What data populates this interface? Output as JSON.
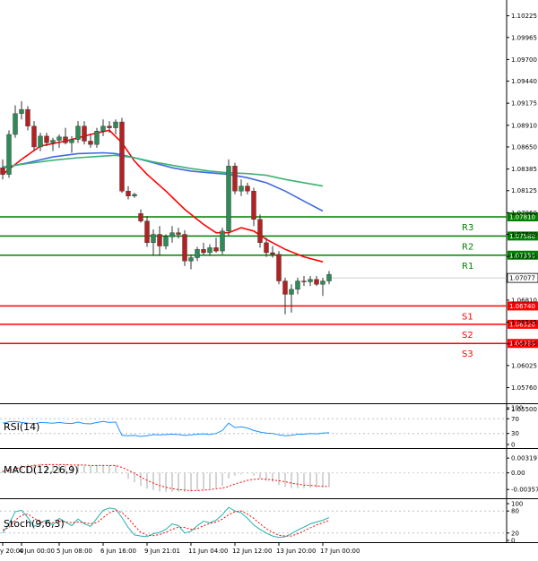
{
  "chart_data": {
    "type": "candlestick",
    "price_axis": {
      "min": 1.0555,
      "max": 1.1035,
      "ticks": [
        "1.10225",
        "1.09965",
        "1.09700",
        "1.09440",
        "1.09175",
        "1.08910",
        "1.08650",
        "1.08385",
        "1.08125",
        "1.07860",
        "1.07600",
        "1.07335",
        "1.06810",
        "1.06545",
        "1.06285",
        "1.06025",
        "1.05760",
        "1.05500"
      ]
    },
    "time_labels": [
      {
        "i": 0,
        "label": "y 20:00"
      },
      {
        "i": 3,
        "label": "4 Jun 00:00"
      },
      {
        "i": 9,
        "label": "5 Jun 08:00"
      },
      {
        "i": 16,
        "label": "6 Jun 16:00"
      },
      {
        "i": 23,
        "label": "9 Jun 21:01"
      },
      {
        "i": 30,
        "label": "11 Jun 04:00"
      },
      {
        "i": 37,
        "label": "12 Jun 12:00"
      },
      {
        "i": 44,
        "label": "13 Jun 20:00"
      },
      {
        "i": 51,
        "label": "17 Jun 00:00"
      }
    ],
    "candles": [
      {
        "o": 1.084,
        "h": 1.085,
        "l": 1.0826,
        "c": 1.0832
      },
      {
        "o": 1.0832,
        "h": 1.0885,
        "l": 1.0828,
        "c": 1.088
      },
      {
        "o": 1.088,
        "h": 1.0915,
        "l": 1.0876,
        "c": 1.0905
      },
      {
        "o": 1.0905,
        "h": 1.092,
        "l": 1.0898,
        "c": 1.091
      },
      {
        "o": 1.091,
        "h": 1.0914,
        "l": 1.0885,
        "c": 1.089
      },
      {
        "o": 1.089,
        "h": 1.0896,
        "l": 1.086,
        "c": 1.0865
      },
      {
        "o": 1.0865,
        "h": 1.0882,
        "l": 1.086,
        "c": 1.0878
      },
      {
        "o": 1.0878,
        "h": 1.0882,
        "l": 1.0866,
        "c": 1.087
      },
      {
        "o": 1.087,
        "h": 1.0876,
        "l": 1.086,
        "c": 1.0873
      },
      {
        "o": 1.0873,
        "h": 1.088,
        "l": 1.0864,
        "c": 1.0877
      },
      {
        "o": 1.0877,
        "h": 1.0888,
        "l": 1.0868,
        "c": 1.087
      },
      {
        "o": 1.087,
        "h": 1.0878,
        "l": 1.0858,
        "c": 1.0874
      },
      {
        "o": 1.0874,
        "h": 1.0896,
        "l": 1.087,
        "c": 1.089
      },
      {
        "o": 1.089,
        "h": 1.0896,
        "l": 1.0868,
        "c": 1.0872
      },
      {
        "o": 1.0872,
        "h": 1.088,
        "l": 1.0864,
        "c": 1.0868
      },
      {
        "o": 1.0868,
        "h": 1.0888,
        "l": 1.0864,
        "c": 1.0884
      },
      {
        "o": 1.0884,
        "h": 1.0898,
        "l": 1.0878,
        "c": 1.089
      },
      {
        "o": 1.089,
        "h": 1.0896,
        "l": 1.0882,
        "c": 1.0888
      },
      {
        "o": 1.0888,
        "h": 1.0898,
        "l": 1.088,
        "c": 1.0895
      },
      {
        "o": 1.0895,
        "h": 1.09,
        "l": 1.081,
        "c": 1.0812
      },
      {
        "o": 1.0812,
        "h": 1.0818,
        "l": 1.0802,
        "c": 1.0806
      },
      {
        "o": 1.0806,
        "h": 1.081,
        "l": 1.0804,
        "c": 1.0808
      },
      {
        "o": 1.0785,
        "h": 1.079,
        "l": 1.0774,
        "c": 1.0776
      },
      {
        "o": 1.0776,
        "h": 1.0782,
        "l": 1.0745,
        "c": 1.075
      },
      {
        "o": 1.075,
        "h": 1.0766,
        "l": 1.0734,
        "c": 1.076
      },
      {
        "o": 1.076,
        "h": 1.077,
        "l": 1.0734,
        "c": 1.0746
      },
      {
        "o": 1.0746,
        "h": 1.076,
        "l": 1.0742,
        "c": 1.0757
      },
      {
        "o": 1.0757,
        "h": 1.077,
        "l": 1.075,
        "c": 1.0762
      },
      {
        "o": 1.0762,
        "h": 1.0768,
        "l": 1.0755,
        "c": 1.076
      },
      {
        "o": 1.076,
        "h": 1.0765,
        "l": 1.0722,
        "c": 1.0728
      },
      {
        "o": 1.0728,
        "h": 1.0736,
        "l": 1.0718,
        "c": 1.0732
      },
      {
        "o": 1.0732,
        "h": 1.0745,
        "l": 1.0728,
        "c": 1.0742
      },
      {
        "o": 1.0742,
        "h": 1.075,
        "l": 1.0735,
        "c": 1.0738
      },
      {
        "o": 1.0738,
        "h": 1.0748,
        "l": 1.0734,
        "c": 1.0744
      },
      {
        "o": 1.0744,
        "h": 1.0756,
        "l": 1.0738,
        "c": 1.074
      },
      {
        "o": 1.074,
        "h": 1.0768,
        "l": 1.0736,
        "c": 1.0764
      },
      {
        "o": 1.0764,
        "h": 1.085,
        "l": 1.0758,
        "c": 1.0842
      },
      {
        "o": 1.0842,
        "h": 1.0846,
        "l": 1.0808,
        "c": 1.0812
      },
      {
        "o": 1.0812,
        "h": 1.0826,
        "l": 1.0806,
        "c": 1.0818
      },
      {
        "o": 1.0818,
        "h": 1.0822,
        "l": 1.0808,
        "c": 1.0812
      },
      {
        "o": 1.0812,
        "h": 1.0816,
        "l": 1.077,
        "c": 1.0778
      },
      {
        "o": 1.0778,
        "h": 1.0784,
        "l": 1.0744,
        "c": 1.075
      },
      {
        "o": 1.075,
        "h": 1.0756,
        "l": 1.0733,
        "c": 1.0738
      },
      {
        "o": 1.0738,
        "h": 1.0746,
        "l": 1.0732,
        "c": 1.0736
      },
      {
        "o": 1.0736,
        "h": 1.074,
        "l": 1.07,
        "c": 1.0704
      },
      {
        "o": 1.0704,
        "h": 1.0708,
        "l": 1.0664,
        "c": 1.0688
      },
      {
        "o": 1.0688,
        "h": 1.07,
        "l": 1.0666,
        "c": 1.0694
      },
      {
        "o": 1.0694,
        "h": 1.0708,
        "l": 1.0688,
        "c": 1.0704
      },
      {
        "o": 1.0704,
        "h": 1.071,
        "l": 1.0698,
        "c": 1.0703
      },
      {
        "o": 1.0703,
        "h": 1.071,
        "l": 1.0698,
        "c": 1.0706
      },
      {
        "o": 1.0706,
        "h": 1.071,
        "l": 1.0698,
        "c": 1.07
      },
      {
        "o": 1.07,
        "h": 1.0708,
        "l": 1.0686,
        "c": 1.0704
      },
      {
        "o": 1.0704,
        "h": 1.0716,
        "l": 1.07,
        "c": 1.0712
      }
    ],
    "moving_averages": [
      {
        "name": "red",
        "color": "#ff0000",
        "points": [
          [
            0,
            1.0832
          ],
          [
            3,
            1.085
          ],
          [
            6,
            1.0866
          ],
          [
            10,
            1.0872
          ],
          [
            14,
            1.088
          ],
          [
            17,
            1.0885
          ],
          [
            19,
            1.087
          ],
          [
            21,
            1.0848
          ],
          [
            23,
            1.0832
          ],
          [
            26,
            1.0812
          ],
          [
            29,
            1.079
          ],
          [
            32,
            1.0772
          ],
          [
            34,
            1.0762
          ],
          [
            36,
            1.0762
          ],
          [
            38,
            1.0768
          ],
          [
            40,
            1.0764
          ],
          [
            42,
            1.0754
          ],
          [
            45,
            1.0742
          ],
          [
            48,
            1.0733
          ],
          [
            51,
            1.0727
          ]
        ]
      },
      {
        "name": "blue",
        "color": "#4169e1",
        "points": [
          [
            0,
            1.084
          ],
          [
            4,
            1.0846
          ],
          [
            8,
            1.0853
          ],
          [
            12,
            1.0857
          ],
          [
            16,
            1.0858
          ],
          [
            18,
            1.0857
          ],
          [
            21,
            1.0852
          ],
          [
            24,
            1.0846
          ],
          [
            27,
            1.084
          ],
          [
            30,
            1.0836
          ],
          [
            33,
            1.0834
          ],
          [
            36,
            1.0832
          ],
          [
            39,
            1.0828
          ],
          [
            42,
            1.0822
          ],
          [
            45,
            1.0812
          ],
          [
            48,
            1.08
          ],
          [
            51,
            1.0788
          ]
        ]
      },
      {
        "name": "green",
        "color": "#3cb371",
        "points": [
          [
            0,
            1.0841
          ],
          [
            4,
            1.0845
          ],
          [
            8,
            1.0849
          ],
          [
            12,
            1.0852
          ],
          [
            16,
            1.0854
          ],
          [
            18,
            1.0855
          ],
          [
            21,
            1.0852
          ],
          [
            24,
            1.0847
          ],
          [
            27,
            1.0843
          ],
          [
            30,
            1.0839
          ],
          [
            33,
            1.0836
          ],
          [
            36,
            1.0834
          ],
          [
            39,
            1.0833
          ],
          [
            42,
            1.0831
          ],
          [
            45,
            1.0826
          ],
          [
            48,
            1.0822
          ],
          [
            51,
            1.0818
          ]
        ]
      }
    ],
    "levels": [
      {
        "label": "R3",
        "value": 1.0781,
        "text": "1.07810",
        "color": "#008000"
      },
      {
        "label": "R2",
        "value": 1.0758,
        "text": "1.07580",
        "color": "#008000"
      },
      {
        "label": "R1",
        "value": 1.0735,
        "text": "1.07350",
        "color": "#008000"
      },
      {
        "label": "S1",
        "value": 1.0674,
        "text": "1.06740",
        "color": "#ff0000"
      },
      {
        "label": "S2",
        "value": 1.0652,
        "text": "1.06520",
        "color": "#ff0000"
      },
      {
        "label": "S3",
        "value": 1.0629,
        "text": "1.06290",
        "color": "#ff0000"
      }
    ],
    "current_price": {
      "value": 1.07077,
      "text": "1.07077"
    },
    "rsi": {
      "title": "RSI(14)",
      "ticks": [
        "100",
        "70",
        "30",
        "0"
      ],
      "tick_values": [
        100,
        70,
        30,
        0
      ],
      "values": [
        58,
        62,
        63,
        60,
        58,
        56,
        60,
        59,
        58,
        60,
        58,
        57,
        61,
        57,
        56,
        60,
        63,
        60,
        61,
        25,
        24,
        25,
        22,
        24,
        27,
        26,
        27,
        28,
        27,
        25,
        26,
        28,
        29,
        27,
        30,
        38,
        58,
        46,
        48,
        45,
        38,
        34,
        31,
        30,
        26,
        24,
        25,
        28,
        28,
        30,
        29,
        31,
        32
      ]
    },
    "macd": {
      "title": "MACD(12,26,9)",
      "ticks": [
        "0.003197",
        "0.00",
        "-0.003573"
      ],
      "tick_values": [
        0.003197,
        0,
        -0.003573
      ],
      "histogram": [
        0.0006,
        0.001,
        0.0014,
        0.0017,
        0.0019,
        0.0019,
        0.002,
        0.0019,
        0.0019,
        0.0018,
        0.0018,
        0.0017,
        0.0018,
        0.0016,
        0.0015,
        0.0016,
        0.0016,
        0.0016,
        0.0016,
        -0.0002,
        -0.0013,
        -0.002,
        -0.0028,
        -0.0034,
        -0.0037,
        -0.004,
        -0.0041,
        -0.0041,
        -0.004,
        -0.0041,
        -0.004,
        -0.0038,
        -0.0036,
        -0.0034,
        -0.0032,
        -0.0028,
        -0.0012,
        -0.0006,
        -0.0003,
        -0.0001,
        -0.0006,
        -0.0012,
        -0.0017,
        -0.002,
        -0.0026,
        -0.003,
        -0.0033,
        -0.0033,
        -0.0033,
        -0.0032,
        -0.0032,
        -0.0031,
        -0.003
      ],
      "signal": [
        0.0003,
        0.0006,
        0.0009,
        0.0012,
        0.0014,
        0.0016,
        0.0017,
        0.0018,
        0.0018,
        0.0018,
        0.0018,
        0.0017,
        0.0017,
        0.0017,
        0.0016,
        0.0016,
        0.0016,
        0.0016,
        0.0016,
        0.0012,
        0.0006,
        -0.0001,
        -0.0009,
        -0.0016,
        -0.0022,
        -0.0027,
        -0.0031,
        -0.0034,
        -0.0036,
        -0.0037,
        -0.0038,
        -0.0038,
        -0.0037,
        -0.0036,
        -0.0034,
        -0.0033,
        -0.0029,
        -0.0024,
        -0.002,
        -0.0016,
        -0.0014,
        -0.0013,
        -0.0014,
        -0.0015,
        -0.0017,
        -0.0019,
        -0.0022,
        -0.0024,
        -0.0026,
        -0.0027,
        -0.0028,
        -0.0029,
        -0.0029
      ]
    },
    "stoch": {
      "title": "Stoch(9,6,3)",
      "ticks": [
        "100",
        "80",
        "20",
        "0"
      ],
      "tick_values": [
        100,
        80,
        20,
        0
      ],
      "main": [
        20,
        45,
        78,
        82,
        62,
        38,
        48,
        55,
        42,
        60,
        50,
        40,
        58,
        45,
        38,
        60,
        82,
        88,
        85,
        62,
        35,
        15,
        12,
        10,
        18,
        22,
        30,
        45,
        40,
        20,
        25,
        40,
        52,
        48,
        55,
        70,
        90,
        80,
        75,
        60,
        42,
        30,
        20,
        12,
        8,
        10,
        18,
        28,
        36,
        45,
        50,
        55,
        62
      ],
      "signal": [
        28,
        35,
        55,
        68,
        72,
        60,
        50,
        48,
        48,
        52,
        50,
        48,
        50,
        48,
        45,
        48,
        62,
        75,
        82,
        76,
        60,
        40,
        22,
        14,
        13,
        16,
        22,
        30,
        36,
        35,
        30,
        32,
        40,
        46,
        50,
        58,
        70,
        78,
        80,
        72,
        60,
        45,
        32,
        22,
        14,
        12,
        12,
        18,
        26,
        34,
        42,
        48,
        54
      ]
    }
  }
}
